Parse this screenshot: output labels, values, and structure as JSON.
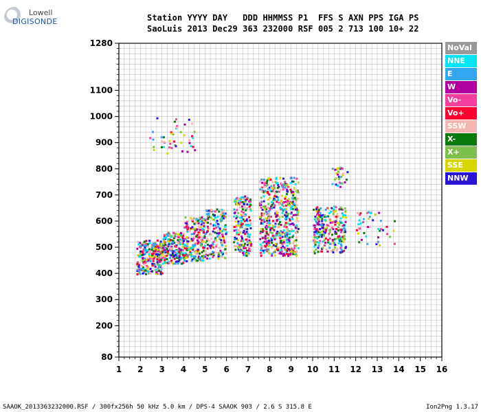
{
  "logo": {
    "line1": "Lowell",
    "line2": "DIGISONDE"
  },
  "header": {
    "line1": "Station YYYY DAY   DDD HHMMSS P1  FFS S AXN PPS IGA PS",
    "line2": "SaoLuis 2013 Dec29 363 232000 RSF 005 2 713 100 10+ 22"
  },
  "legend": [
    {
      "label": "NoVal",
      "color": "#999999"
    },
    {
      "label": "NNE",
      "color": "#00e5f5"
    },
    {
      "label": "E",
      "color": "#33a6f2"
    },
    {
      "label": "W",
      "color": "#b0009f"
    },
    {
      "label": "Vo-",
      "color": "#f43f9f"
    },
    {
      "label": "Vo+",
      "color": "#ff0033"
    },
    {
      "label": "SSW",
      "color": "#f5b5b0"
    },
    {
      "label": "X-",
      "color": "#0a7a0a"
    },
    {
      "label": "X+",
      "color": "#7cbf4a"
    },
    {
      "label": "SSE",
      "color": "#d6d600"
    },
    {
      "label": "NNW",
      "color": "#2a14d6"
    }
  ],
  "footer": {
    "left": "SAAOK_2013363232000.RSF / 300fx256h 50 kHz 5.0 km / DPS-4 SAAOK 903 / 2.6 S 315.8 E",
    "right": "Ion2Png 1.3.17"
  },
  "chart_data": {
    "type": "scatter",
    "x_ticks": [
      1,
      2,
      3,
      4,
      5,
      6,
      7,
      8,
      9,
      10,
      11,
      12,
      13,
      14,
      15,
      16
    ],
    "y_ticks": [
      80,
      200,
      300,
      400,
      500,
      600,
      700,
      800,
      900,
      1000,
      1100,
      1280
    ],
    "xlim": [
      1,
      16
    ],
    "ylim": [
      80,
      1280
    ],
    "grid": true,
    "clusters": [
      {
        "xmin": 1.8,
        "xmax": 3.0,
        "ymin": 400,
        "ymax": 530,
        "n": 260
      },
      {
        "xmin": 3.0,
        "xmax": 4.0,
        "ymin": 440,
        "ymax": 560,
        "n": 220
      },
      {
        "xmin": 4.0,
        "xmax": 5.0,
        "ymin": 450,
        "ymax": 620,
        "n": 200
      },
      {
        "xmin": 5.0,
        "xmax": 5.95,
        "ymin": 460,
        "ymax": 650,
        "n": 170
      },
      {
        "xmin": 6.3,
        "xmax": 7.1,
        "ymin": 470,
        "ymax": 700,
        "n": 200
      },
      {
        "xmin": 7.5,
        "xmax": 9.3,
        "ymin": 470,
        "ymax": 770,
        "n": 520
      },
      {
        "xmin": 10.0,
        "xmax": 11.5,
        "ymin": 480,
        "ymax": 660,
        "n": 250
      },
      {
        "xmin": 12.0,
        "xmax": 13.8,
        "ymin": 510,
        "ymax": 640,
        "n": 45
      },
      {
        "xmin": 2.4,
        "xmax": 4.5,
        "ymin": 860,
        "ymax": 1000,
        "n": 45
      },
      {
        "xmin": 10.8,
        "xmax": 11.6,
        "ymin": 730,
        "ymax": 810,
        "n": 30
      }
    ]
  }
}
